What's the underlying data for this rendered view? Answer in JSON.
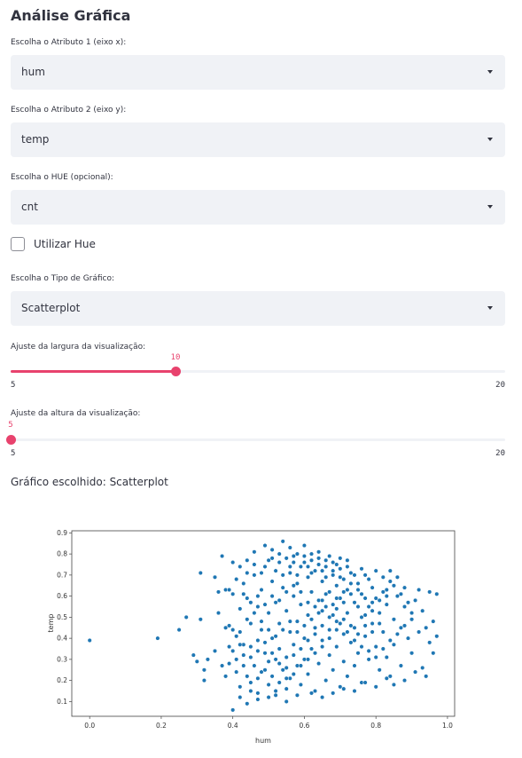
{
  "page": {
    "title": "Análise Gráfica"
  },
  "attr_x": {
    "label": "Escolha o Atributo 1 (eixo x):",
    "value": "hum"
  },
  "attr_y": {
    "label": "Escolha o Atributo 2 (eixo y):",
    "value": "temp"
  },
  "hue": {
    "label": "Escolha o HUE (opcional):",
    "value": "cnt"
  },
  "use_hue": {
    "label": "Utilizar Hue",
    "checked": false
  },
  "chart_type": {
    "label": "Escolha o Tipo de Gráfico:",
    "value": "Scatterplot"
  },
  "width_slider": {
    "label": "Ajuste da largura da visualização:",
    "value": 10,
    "value_text": "10",
    "min": 5,
    "max": 20,
    "min_text": "5",
    "max_text": "20"
  },
  "height_slider": {
    "label": "Ajuste da altura da visualização:",
    "value": 5,
    "value_text": "5",
    "min": 5,
    "max": 20,
    "min_text": "5",
    "max_text": "20"
  },
  "chosen": {
    "text": "Gráfico escolhido: Scatterplot"
  },
  "colors": {
    "accent": "#e8426d",
    "point": "#1f77b4",
    "select_bg": "#f0f2f6"
  },
  "chart_data": {
    "type": "scatter",
    "xlabel": "hum",
    "ylabel": "temp",
    "xlim": [
      -0.05,
      1.02
    ],
    "ylim": [
      0.03,
      0.91
    ],
    "xticks": [
      0.0,
      0.2,
      0.4,
      0.6,
      0.8,
      1.0
    ],
    "xtick_labels": [
      "0.0",
      "0.2",
      "0.4",
      "0.6",
      "0.8",
      "1.0"
    ],
    "yticks": [
      0.1,
      0.2,
      0.3,
      0.4,
      0.5,
      0.6,
      0.7,
      0.8,
      0.9
    ],
    "ytick_labels": [
      "0.1",
      "0.2",
      "0.3",
      "0.4",
      "0.5",
      "0.6",
      "0.7",
      "0.8",
      "0.9"
    ],
    "grid": false,
    "points": [
      [
        0.0,
        0.39
      ],
      [
        0.19,
        0.4
      ],
      [
        0.25,
        0.44
      ],
      [
        0.27,
        0.5
      ],
      [
        0.29,
        0.32
      ],
      [
        0.3,
        0.29
      ],
      [
        0.31,
        0.71
      ],
      [
        0.31,
        0.49
      ],
      [
        0.32,
        0.2
      ],
      [
        0.32,
        0.25
      ],
      [
        0.33,
        0.3
      ],
      [
        0.35,
        0.34
      ],
      [
        0.35,
        0.69
      ],
      [
        0.36,
        0.52
      ],
      [
        0.36,
        0.62
      ],
      [
        0.37,
        0.79
      ],
      [
        0.38,
        0.63
      ],
      [
        0.38,
        0.22
      ],
      [
        0.39,
        0.46
      ],
      [
        0.39,
        0.28
      ],
      [
        0.4,
        0.76
      ],
      [
        0.4,
        0.61
      ],
      [
        0.4,
        0.06
      ],
      [
        0.41,
        0.3
      ],
      [
        0.41,
        0.41
      ],
      [
        0.42,
        0.12
      ],
      [
        0.42,
        0.17
      ],
      [
        0.42,
        0.54
      ],
      [
        0.42,
        0.43
      ],
      [
        0.43,
        0.66
      ],
      [
        0.43,
        0.32
      ],
      [
        0.44,
        0.22
      ],
      [
        0.44,
        0.59
      ],
      [
        0.44,
        0.77
      ],
      [
        0.45,
        0.47
      ],
      [
        0.45,
        0.15
      ],
      [
        0.45,
        0.36
      ],
      [
        0.46,
        0.7
      ],
      [
        0.46,
        0.27
      ],
      [
        0.46,
        0.81
      ],
      [
        0.47,
        0.55
      ],
      [
        0.47,
        0.39
      ],
      [
        0.47,
        0.11
      ],
      [
        0.48,
        0.63
      ],
      [
        0.48,
        0.24
      ],
      [
        0.48,
        0.44
      ],
      [
        0.49,
        0.74
      ],
      [
        0.49,
        0.33
      ],
      [
        0.49,
        0.84
      ],
      [
        0.5,
        0.52
      ],
      [
        0.5,
        0.29
      ],
      [
        0.5,
        0.18
      ],
      [
        0.51,
        0.67
      ],
      [
        0.51,
        0.4
      ],
      [
        0.51,
        0.82
      ],
      [
        0.52,
        0.57
      ],
      [
        0.52,
        0.3
      ],
      [
        0.52,
        0.13
      ],
      [
        0.53,
        0.76
      ],
      [
        0.53,
        0.47
      ],
      [
        0.53,
        0.35
      ],
      [
        0.54,
        0.64
      ],
      [
        0.54,
        0.25
      ],
      [
        0.54,
        0.86
      ],
      [
        0.55,
        0.53
      ],
      [
        0.55,
        0.31
      ],
      [
        0.55,
        0.1
      ],
      [
        0.56,
        0.71
      ],
      [
        0.56,
        0.43
      ],
      [
        0.56,
        0.21
      ],
      [
        0.57,
        0.79
      ],
      [
        0.57,
        0.6
      ],
      [
        0.57,
        0.37
      ],
      [
        0.58,
        0.66
      ],
      [
        0.58,
        0.27
      ],
      [
        0.58,
        0.48
      ],
      [
        0.59,
        0.74
      ],
      [
        0.59,
        0.18
      ],
      [
        0.59,
        0.56
      ],
      [
        0.6,
        0.84
      ],
      [
        0.6,
        0.4
      ],
      [
        0.6,
        0.3
      ],
      [
        0.61,
        0.69
      ],
      [
        0.61,
        0.51
      ],
      [
        0.61,
        0.23
      ],
      [
        0.62,
        0.77
      ],
      [
        0.62,
        0.62
      ],
      [
        0.62,
        0.35
      ],
      [
        0.63,
        0.72
      ],
      [
        0.63,
        0.45
      ],
      [
        0.63,
        0.15
      ],
      [
        0.64,
        0.81
      ],
      [
        0.64,
        0.58
      ],
      [
        0.64,
        0.28
      ],
      [
        0.65,
        0.67
      ],
      [
        0.65,
        0.39
      ],
      [
        0.65,
        0.53
      ],
      [
        0.66,
        0.74
      ],
      [
        0.66,
        0.2
      ],
      [
        0.66,
        0.61
      ],
      [
        0.67,
        0.79
      ],
      [
        0.67,
        0.44
      ],
      [
        0.67,
        0.32
      ],
      [
        0.68,
        0.7
      ],
      [
        0.68,
        0.56
      ],
      [
        0.68,
        0.25
      ],
      [
        0.69,
        0.65
      ],
      [
        0.69,
        0.48
      ],
      [
        0.69,
        0.36
      ],
      [
        0.7,
        0.73
      ],
      [
        0.7,
        0.59
      ],
      [
        0.7,
        0.17
      ],
      [
        0.71,
        0.68
      ],
      [
        0.71,
        0.42
      ],
      [
        0.71,
        0.29
      ],
      [
        0.72,
        0.63
      ],
      [
        0.72,
        0.52
      ],
      [
        0.72,
        0.22
      ],
      [
        0.73,
        0.71
      ],
      [
        0.73,
        0.38
      ],
      [
        0.74,
        0.57
      ],
      [
        0.74,
        0.45
      ],
      [
        0.74,
        0.27
      ],
      [
        0.75,
        0.66
      ],
      [
        0.75,
        0.33
      ],
      [
        0.76,
        0.61
      ],
      [
        0.76,
        0.5
      ],
      [
        0.76,
        0.19
      ],
      [
        0.77,
        0.7
      ],
      [
        0.77,
        0.41
      ],
      [
        0.78,
        0.55
      ],
      [
        0.78,
        0.3
      ],
      [
        0.79,
        0.64
      ],
      [
        0.79,
        0.47
      ],
      [
        0.8,
        0.36
      ],
      [
        0.8,
        0.59
      ],
      [
        0.81,
        0.25
      ],
      [
        0.81,
        0.52
      ],
      [
        0.82,
        0.62
      ],
      [
        0.82,
        0.43
      ],
      [
        0.83,
        0.31
      ],
      [
        0.83,
        0.56
      ],
      [
        0.84,
        0.67
      ],
      [
        0.84,
        0.22
      ],
      [
        0.85,
        0.49
      ],
      [
        0.85,
        0.37
      ],
      [
        0.86,
        0.6
      ],
      [
        0.87,
        0.45
      ],
      [
        0.87,
        0.27
      ],
      [
        0.88,
        0.55
      ],
      [
        0.88,
        0.64
      ],
      [
        0.89,
        0.4
      ],
      [
        0.9,
        0.49
      ],
      [
        0.9,
        0.33
      ],
      [
        0.91,
        0.58
      ],
      [
        0.92,
        0.63
      ],
      [
        0.92,
        0.43
      ],
      [
        0.93,
        0.26
      ],
      [
        0.93,
        0.53
      ],
      [
        0.94,
        0.45
      ],
      [
        0.95,
        0.62
      ],
      [
        0.95,
        0.38
      ],
      [
        0.96,
        0.48
      ],
      [
        0.97,
        0.61
      ],
      [
        0.97,
        0.41
      ],
      [
        0.96,
        0.33
      ],
      [
        0.94,
        0.22
      ],
      [
        0.91,
        0.24
      ],
      [
        0.88,
        0.2
      ],
      [
        0.85,
        0.18
      ],
      [
        0.83,
        0.21
      ],
      [
        0.8,
        0.17
      ],
      [
        0.77,
        0.19
      ],
      [
        0.74,
        0.15
      ],
      [
        0.71,
        0.16
      ],
      [
        0.68,
        0.14
      ],
      [
        0.65,
        0.12
      ],
      [
        0.62,
        0.14
      ],
      [
        0.58,
        0.13
      ],
      [
        0.55,
        0.16
      ],
      [
        0.52,
        0.15
      ],
      [
        0.5,
        0.12
      ],
      [
        0.47,
        0.14
      ],
      [
        0.44,
        0.09
      ],
      [
        0.43,
        0.27
      ],
      [
        0.45,
        0.31
      ],
      [
        0.47,
        0.34
      ],
      [
        0.49,
        0.38
      ],
      [
        0.51,
        0.33
      ],
      [
        0.53,
        0.28
      ],
      [
        0.55,
        0.26
      ],
      [
        0.57,
        0.32
      ],
      [
        0.59,
        0.35
      ],
      [
        0.61,
        0.39
      ],
      [
        0.63,
        0.42
      ],
      [
        0.65,
        0.46
      ],
      [
        0.67,
        0.5
      ],
      [
        0.69,
        0.54
      ],
      [
        0.71,
        0.57
      ],
      [
        0.73,
        0.61
      ],
      [
        0.75,
        0.55
      ],
      [
        0.77,
        0.51
      ],
      [
        0.79,
        0.53
      ],
      [
        0.81,
        0.58
      ],
      [
        0.83,
        0.63
      ],
      [
        0.86,
        0.69
      ],
      [
        0.84,
        0.72
      ],
      [
        0.82,
        0.69
      ],
      [
        0.8,
        0.72
      ],
      [
        0.78,
        0.68
      ],
      [
        0.76,
        0.73
      ],
      [
        0.74,
        0.7
      ],
      [
        0.72,
        0.74
      ],
      [
        0.7,
        0.69
      ],
      [
        0.68,
        0.72
      ],
      [
        0.66,
        0.69
      ],
      [
        0.64,
        0.75
      ],
      [
        0.62,
        0.71
      ],
      [
        0.6,
        0.76
      ],
      [
        0.58,
        0.7
      ],
      [
        0.56,
        0.74
      ],
      [
        0.54,
        0.7
      ],
      [
        0.52,
        0.72
      ],
      [
        0.5,
        0.77
      ],
      [
        0.48,
        0.71
      ],
      [
        0.46,
        0.75
      ],
      [
        0.44,
        0.71
      ],
      [
        0.42,
        0.74
      ],
      [
        0.41,
        0.68
      ],
      [
        0.43,
        0.61
      ],
      [
        0.45,
        0.57
      ],
      [
        0.47,
        0.6
      ],
      [
        0.49,
        0.56
      ],
      [
        0.51,
        0.6
      ],
      [
        0.53,
        0.58
      ],
      [
        0.55,
        0.62
      ],
      [
        0.57,
        0.65
      ],
      [
        0.59,
        0.62
      ],
      [
        0.61,
        0.57
      ],
      [
        0.63,
        0.55
      ],
      [
        0.65,
        0.58
      ],
      [
        0.67,
        0.62
      ],
      [
        0.69,
        0.59
      ],
      [
        0.71,
        0.62
      ],
      [
        0.73,
        0.66
      ],
      [
        0.75,
        0.63
      ],
      [
        0.77,
        0.59
      ],
      [
        0.79,
        0.57
      ],
      [
        0.81,
        0.47
      ],
      [
        0.79,
        0.43
      ],
      [
        0.77,
        0.46
      ],
      [
        0.75,
        0.42
      ],
      [
        0.73,
        0.46
      ],
      [
        0.71,
        0.49
      ],
      [
        0.69,
        0.44
      ],
      [
        0.67,
        0.4
      ],
      [
        0.65,
        0.36
      ],
      [
        0.63,
        0.33
      ],
      [
        0.61,
        0.3
      ],
      [
        0.59,
        0.27
      ],
      [
        0.57,
        0.23
      ],
      [
        0.55,
        0.21
      ],
      [
        0.53,
        0.19
      ],
      [
        0.51,
        0.22
      ],
      [
        0.49,
        0.25
      ],
      [
        0.47,
        0.21
      ],
      [
        0.45,
        0.19
      ],
      [
        0.43,
        0.37
      ],
      [
        0.44,
        0.49
      ],
      [
        0.46,
        0.52
      ],
      [
        0.48,
        0.48
      ],
      [
        0.5,
        0.44
      ],
      [
        0.52,
        0.41
      ],
      [
        0.54,
        0.44
      ],
      [
        0.56,
        0.48
      ],
      [
        0.58,
        0.43
      ],
      [
        0.6,
        0.46
      ],
      [
        0.62,
        0.49
      ],
      [
        0.64,
        0.52
      ],
      [
        0.66,
        0.55
      ],
      [
        0.68,
        0.51
      ],
      [
        0.7,
        0.47
      ],
      [
        0.72,
        0.43
      ],
      [
        0.74,
        0.39
      ],
      [
        0.76,
        0.36
      ],
      [
        0.78,
        0.34
      ],
      [
        0.8,
        0.31
      ],
      [
        0.82,
        0.35
      ],
      [
        0.84,
        0.39
      ],
      [
        0.86,
        0.42
      ],
      [
        0.88,
        0.46
      ],
      [
        0.9,
        0.52
      ],
      [
        0.89,
        0.57
      ],
      [
        0.87,
        0.61
      ],
      [
        0.85,
        0.65
      ],
      [
        0.83,
        0.6
      ],
      [
        0.56,
        0.83
      ],
      [
        0.58,
        0.8
      ],
      [
        0.6,
        0.79
      ],
      [
        0.62,
        0.8
      ],
      [
        0.64,
        0.78
      ],
      [
        0.66,
        0.77
      ],
      [
        0.68,
        0.76
      ],
      [
        0.7,
        0.78
      ],
      [
        0.72,
        0.77
      ],
      [
        0.55,
        0.78
      ],
      [
        0.53,
        0.8
      ],
      [
        0.51,
        0.78
      ],
      [
        0.57,
        0.76
      ],
      [
        0.61,
        0.74
      ],
      [
        0.65,
        0.72
      ],
      [
        0.69,
        0.75
      ],
      [
        0.4,
        0.34
      ],
      [
        0.39,
        0.36
      ],
      [
        0.41,
        0.24
      ],
      [
        0.42,
        0.37
      ],
      [
        0.4,
        0.44
      ],
      [
        0.39,
        0.63
      ],
      [
        0.38,
        0.45
      ],
      [
        0.37,
        0.27
      ]
    ]
  }
}
